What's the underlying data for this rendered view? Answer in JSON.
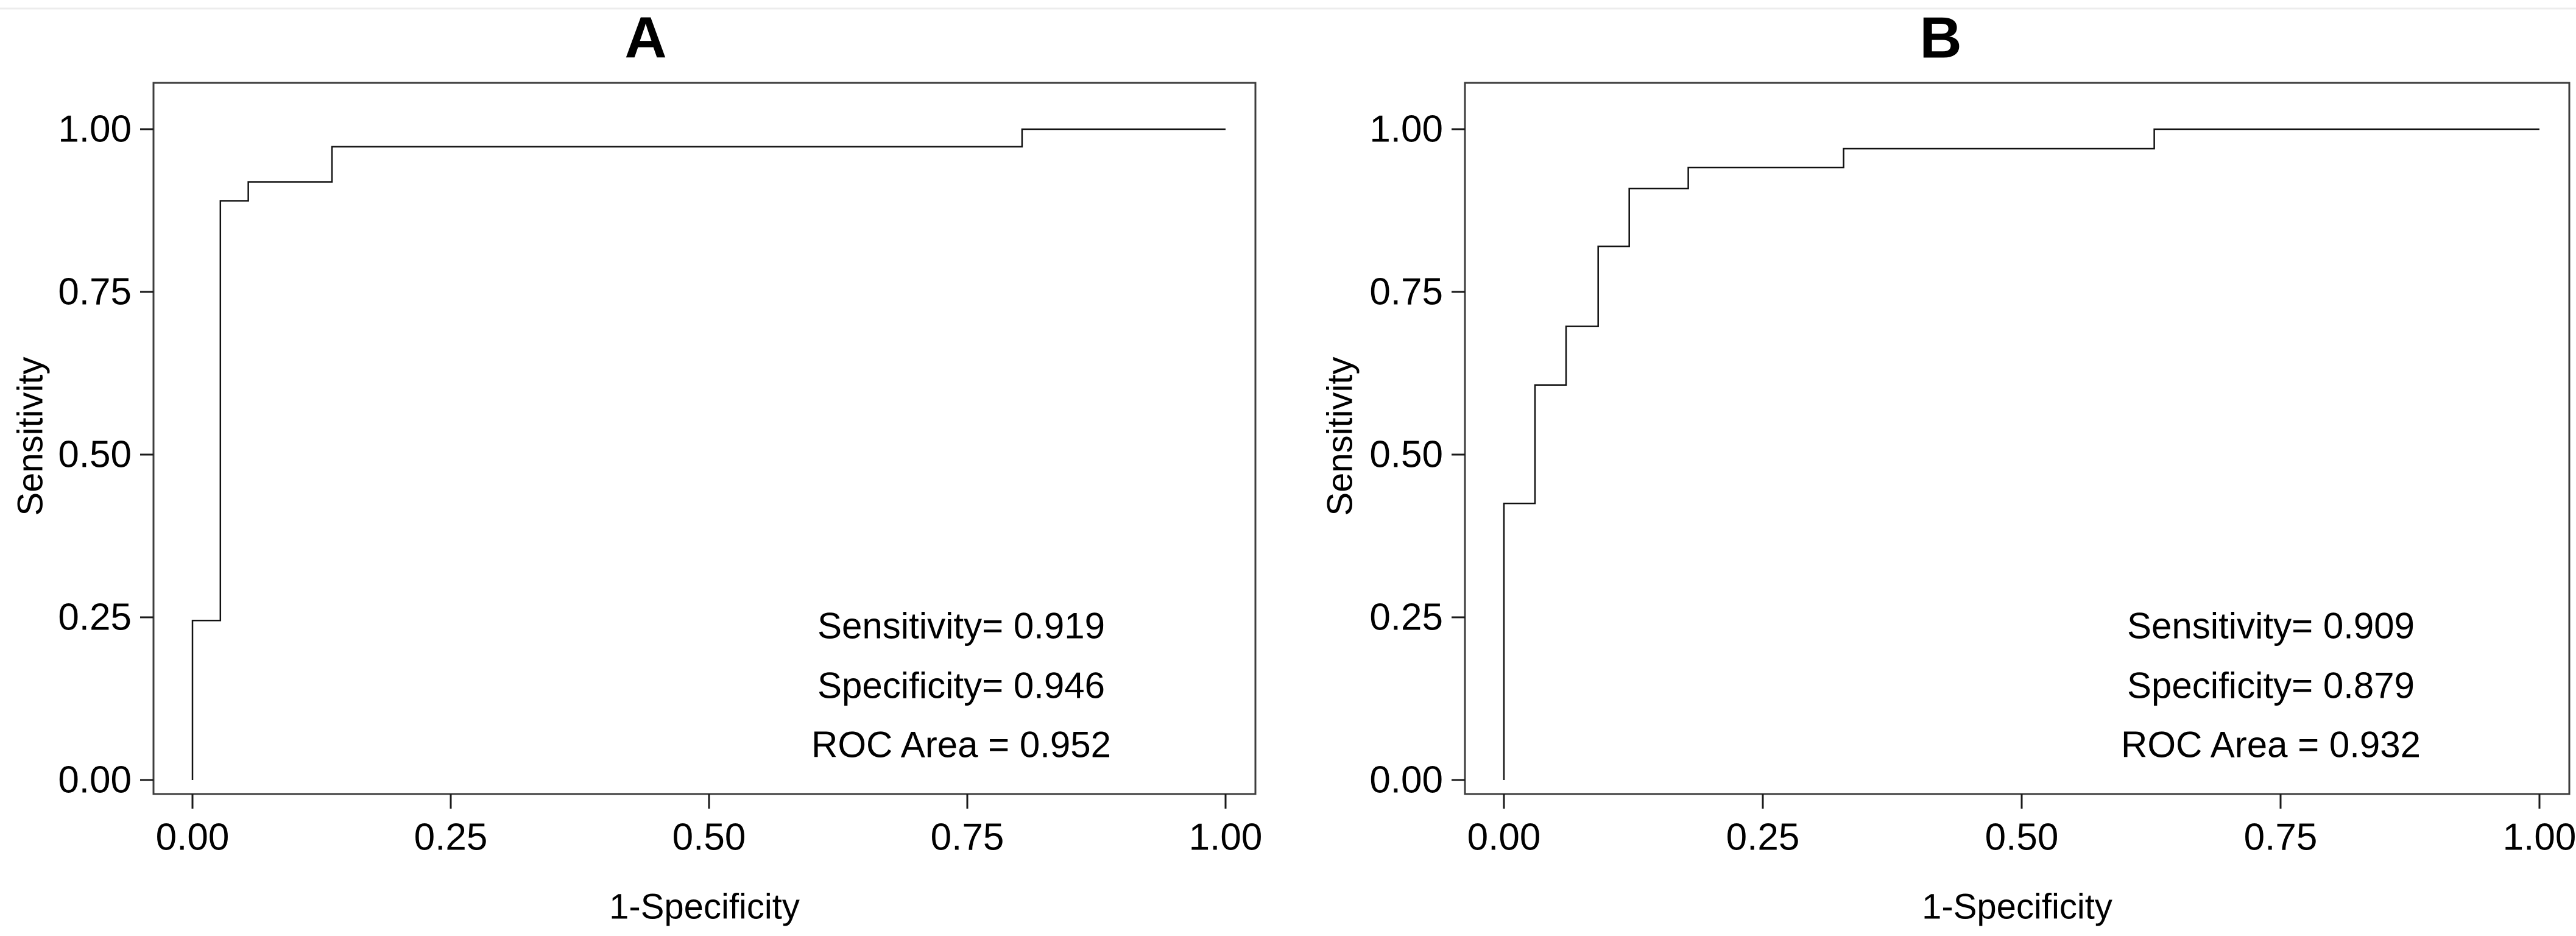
{
  "figure": {
    "background_color": "#ffffff",
    "frame_color": "#3d3d3d",
    "curve_color": "#111111",
    "tick_color": "#1a1a1a",
    "text_color": "#000000",
    "top_rule_color": "#ececec"
  },
  "chart_data": [
    {
      "type": "line",
      "subtype": "roc-step-curve",
      "title": "A",
      "xlabel": "1-Specificity",
      "ylabel": "Sensitivity",
      "xlim": [
        0,
        1
      ],
      "ylim": [
        0,
        1
      ],
      "grid": false,
      "legend": "none",
      "x_tick_values": [
        0,
        0.25,
        0.5,
        0.75,
        1
      ],
      "x_tick_labels": [
        "0.00",
        "0.25",
        "0.50",
        "0.75",
        "1.00"
      ],
      "y_tick_values": [
        0,
        0.25,
        0.5,
        0.75,
        1
      ],
      "y_tick_labels": [
        "0.00",
        "0.25",
        "0.50",
        "0.75",
        "1.00"
      ],
      "series": [
        {
          "name": "ROC curve",
          "x": [
            0,
            0,
            0.027,
            0.027,
            0.054,
            0.054,
            0.135,
            0.135,
            0.803,
            0.803,
            1.0
          ],
          "y": [
            0,
            0.245,
            0.245,
            0.89,
            0.89,
            0.919,
            0.919,
            0.973,
            0.973,
            1.0,
            1.0
          ]
        }
      ],
      "annotation_lines": [
        "Sensitivity= 0.919",
        "Specificity= 0.946",
        "ROC Area = 0.952"
      ],
      "stats": {
        "sensitivity": 0.919,
        "specificity": 0.946,
        "roc_area": 0.952
      }
    },
    {
      "type": "line",
      "subtype": "roc-step-curve",
      "title": "B",
      "xlabel": "1-Specificity",
      "ylabel": "Sensitivity",
      "xlim": [
        0,
        1
      ],
      "ylim": [
        0,
        1
      ],
      "grid": false,
      "legend": "none",
      "x_tick_values": [
        0,
        0.25,
        0.5,
        0.75,
        1
      ],
      "x_tick_labels": [
        "0.00",
        "0.25",
        "0.50",
        "0.75",
        "1.00"
      ],
      "y_tick_values": [
        0,
        0.25,
        0.5,
        0.75,
        1
      ],
      "y_tick_labels": [
        "0.00",
        "0.25",
        "0.50",
        "0.75",
        "1.00"
      ],
      "series": [
        {
          "name": "ROC curve",
          "x": [
            0,
            0,
            0.03,
            0.03,
            0.06,
            0.06,
            0.091,
            0.091,
            0.121,
            0.121,
            0.178,
            0.178,
            0.328,
            0.328,
            0.628,
            0.628,
            1.0
          ],
          "y": [
            0,
            0.425,
            0.425,
            0.607,
            0.607,
            0.697,
            0.697,
            0.82,
            0.82,
            0.909,
            0.909,
            0.941,
            0.941,
            0.97,
            0.97,
            1.0,
            1.0
          ]
        }
      ],
      "annotation_lines": [
        "Sensitivity= 0.909",
        "Specificity= 0.879",
        "ROC Area = 0.932"
      ],
      "stats": {
        "sensitivity": 0.909,
        "specificity": 0.879,
        "roc_area": 0.932
      }
    }
  ]
}
